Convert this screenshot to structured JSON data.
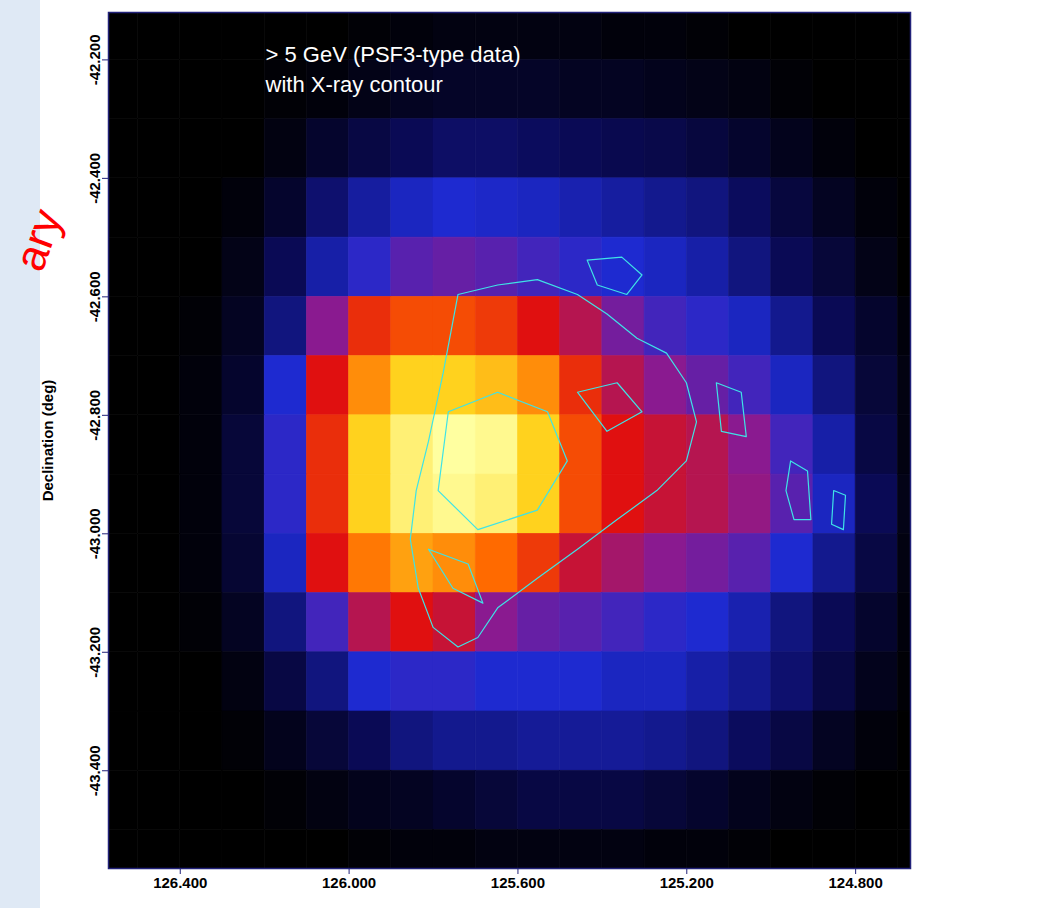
{
  "chart_data": {
    "type": "heatmap",
    "title": "> 5 GeV (PSF3-type data)",
    "subtitle": "with X-ray contour",
    "ylabel": "Declination (deg)",
    "annotations": [
      "ary"
    ],
    "xlim": [
      126.57,
      124.67
    ],
    "ylim": [
      -43.565,
      -42.12
    ],
    "xticks": [
      {
        "value": 126.4,
        "label": "126.400"
      },
      {
        "value": 126.0,
        "label": "126.000"
      },
      {
        "value": 125.6,
        "label": "125.600"
      },
      {
        "value": 125.2,
        "label": "125.200"
      },
      {
        "value": 124.8,
        "label": "124.800"
      }
    ],
    "yticks": [
      {
        "value": -42.2,
        "label": "-42.200"
      },
      {
        "value": -42.4,
        "label": "-42.400"
      },
      {
        "value": -42.6,
        "label": "-42.600"
      },
      {
        "value": -42.8,
        "label": "-42.800"
      },
      {
        "value": -43.0,
        "label": "-43.000"
      },
      {
        "value": -43.2,
        "label": "-43.200"
      },
      {
        "value": -43.4,
        "label": "-43.400"
      }
    ],
    "ra_edges": [
      126.6,
      126.5,
      126.4,
      126.3,
      126.2,
      126.1,
      126.0,
      125.9,
      125.8,
      125.7,
      125.6,
      125.5,
      125.4,
      125.3,
      125.2,
      125.1,
      125.0,
      124.9,
      124.8,
      124.7,
      124.6
    ],
    "dec_edges": [
      -42.1,
      -42.2,
      -42.3,
      -42.4,
      -42.5,
      -42.6,
      -42.7,
      -42.8,
      -42.9,
      -43.0,
      -43.1,
      -43.2,
      -43.3,
      -43.4,
      -43.5,
      -43.6
    ],
    "cells": [
      [
        0,
        0,
        0,
        0,
        0,
        0,
        0.1,
        0.2,
        0.3,
        0.3,
        0.3,
        0.3,
        0.2,
        0.2,
        0.1,
        0,
        0,
        0,
        0,
        0
      ],
      [
        0,
        0,
        0,
        0,
        0.1,
        0.2,
        0.4,
        0.6,
        0.7,
        0.7,
        0.7,
        0.6,
        0.6,
        0.5,
        0.4,
        0.3,
        0.1,
        0,
        0,
        0
      ],
      [
        0,
        0,
        0,
        0,
        0.3,
        0.8,
        1.2,
        1.5,
        1.7,
        1.7,
        1.6,
        1.5,
        1.4,
        1.3,
        1.1,
        0.8,
        0.5,
        0.2,
        0,
        0
      ],
      [
        0,
        0,
        0,
        0.2,
        0.8,
        1.8,
        2.4,
        2.8,
        3,
        2.9,
        2.8,
        2.6,
        2.4,
        2.2,
        2,
        1.6,
        1.1,
        0.6,
        0.2,
        0
      ],
      [
        0,
        0,
        0,
        0.4,
        1.5,
        2.5,
        3.2,
        3.8,
        4,
        3.8,
        3.5,
        3.2,
        3,
        2.8,
        2.5,
        2,
        1.5,
        1,
        0.4,
        0
      ],
      [
        0,
        0,
        0.1,
        0.6,
        2,
        4.5,
        6,
        6.5,
        6.5,
        6.2,
        5.5,
        5,
        4.2,
        3.5,
        3.2,
        2.8,
        2.2,
        1.5,
        0.8,
        0.2
      ],
      [
        0,
        0,
        0.2,
        0.8,
        3,
        5.5,
        7.5,
        8.5,
        8.5,
        8.2,
        7.5,
        6,
        5,
        4.5,
        4,
        3.5,
        2.8,
        2,
        1,
        0.3
      ],
      [
        0,
        0,
        0.2,
        1,
        3.2,
        6,
        8.5,
        9.5,
        10,
        9.8,
        8.5,
        6.5,
        5.5,
        5.2,
        5,
        4.5,
        3.5,
        2.5,
        1.2,
        0.3
      ],
      [
        0,
        0,
        0.2,
        1,
        3.2,
        6,
        8.5,
        9.5,
        9.8,
        9.5,
        8.5,
        6.5,
        5.5,
        5.2,
        5,
        4.6,
        3.8,
        2.8,
        1.5,
        0.4
      ],
      [
        0,
        0,
        0.2,
        0.9,
        2.8,
        5.5,
        7.2,
        7.8,
        7.5,
        7,
        6.2,
        5.2,
        4.8,
        4.5,
        4.2,
        3.8,
        3,
        2.2,
        1.2,
        0.3
      ],
      [
        0,
        0,
        0.1,
        0.6,
        2,
        3.5,
        5,
        5.5,
        5.2,
        4.5,
        4,
        3.8,
        3.5,
        3.2,
        3,
        2.6,
        2,
        1.5,
        0.8,
        0.2
      ],
      [
        0,
        0,
        0,
        0.3,
        1.2,
        2,
        3,
        3.2,
        3.2,
        3,
        3,
        3,
        2.8,
        2.8,
        2.5,
        2.2,
        1.8,
        1.2,
        0.5,
        0.1
      ],
      [
        0,
        0,
        0,
        0.1,
        0.5,
        1,
        1.5,
        2,
        2.2,
        2.2,
        2.3,
        2.3,
        2.3,
        2.2,
        2,
        1.6,
        1.2,
        0.6,
        0.2,
        0
      ],
      [
        0,
        0,
        0,
        0,
        0.1,
        0.3,
        0.5,
        0.6,
        0.8,
        1,
        1.2,
        1.2,
        1.2,
        1,
        0.8,
        0.5,
        0.3,
        0.1,
        0,
        0
      ],
      [
        0,
        0,
        0,
        0,
        0,
        0,
        0.1,
        0.2,
        0.2,
        0.3,
        0.3,
        0.3,
        0.3,
        0.2,
        0.2,
        0.1,
        0,
        0,
        0,
        0
      ]
    ],
    "contours": {
      "color": "#3fe3e6",
      "lines": [
        {
          "ra": [
            125.742,
            125.648,
            125.554,
            125.459,
            125.389,
            125.318,
            125.248,
            125.201,
            125.177,
            125.201,
            125.271,
            125.365,
            125.459,
            125.554,
            125.648,
            125.695,
            125.742,
            125.801,
            125.836,
            125.855,
            125.841,
            125.812,
            125.777
          ],
          "dec": [
            -42.596,
            -42.58,
            -42.571,
            -42.596,
            -42.629,
            -42.67,
            -42.695,
            -42.745,
            -42.811,
            -42.877,
            -42.927,
            -42.976,
            -43.026,
            -43.075,
            -43.125,
            -43.175,
            -43.191,
            -43.158,
            -43.092,
            -43.009,
            -42.927,
            -42.844,
            -42.728
          ]
        },
        {
          "ra": [
            125.765,
            125.648,
            125.53,
            125.483,
            125.554,
            125.695,
            125.789
          ],
          "dec": [
            -42.794,
            -42.761,
            -42.794,
            -42.877,
            -42.96,
            -42.993,
            -42.927
          ]
        },
        {
          "ra": [
            125.812,
            125.754,
            125.683,
            125.718
          ],
          "dec": [
            -43.026,
            -43.092,
            -43.117,
            -43.051
          ]
        },
        {
          "ra": [
            125.459,
            125.365,
            125.306,
            125.389
          ],
          "dec": [
            -42.761,
            -42.745,
            -42.794,
            -42.827
          ]
        },
        {
          "ra": [
            125.436,
            125.354,
            125.306,
            125.342,
            125.412
          ],
          "dec": [
            -42.538,
            -42.533,
            -42.563,
            -42.596,
            -42.58
          ]
        },
        {
          "ra": [
            124.954,
            124.914,
            124.906,
            124.946,
            124.965
          ],
          "dec": [
            -42.877,
            -42.894,
            -42.976,
            -42.976,
            -42.927
          ]
        },
        {
          "ra": [
            125.13,
            125.071,
            125.059,
            125.118
          ],
          "dec": [
            -42.745,
            -42.761,
            -42.836,
            -42.827
          ]
        },
        {
          "ra": [
            124.852,
            124.824,
            124.829,
            124.857
          ],
          "dec": [
            -42.927,
            -42.935,
            -42.993,
            -42.984
          ]
        }
      ]
    }
  }
}
